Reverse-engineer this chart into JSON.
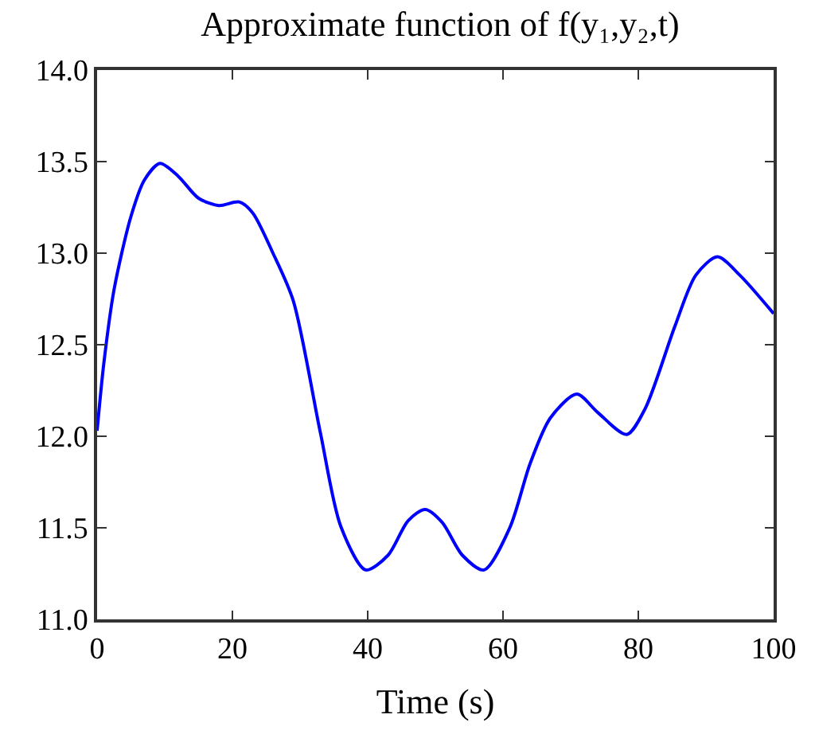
{
  "chart_data": {
    "type": "line",
    "title": "Approximate function of f(y₁,y₂,t)",
    "xlabel": "Time (s)",
    "x": [
      0,
      1,
      2.5,
      5,
      7,
      9.3,
      12,
      15,
      18,
      21,
      23,
      26,
      29,
      33,
      36,
      39.7,
      43,
      46,
      48.5,
      51,
      54,
      57.2,
      61,
      64,
      67,
      70.9,
      74,
      78.3,
      81,
      85.4,
      88.5,
      91.7,
      95,
      100
    ],
    "series": [
      {
        "color": "#0000ff",
        "values": [
          12.03,
          12.4,
          12.8,
          13.2,
          13.4,
          13.49,
          13.42,
          13.3,
          13.26,
          13.28,
          13.22,
          13.0,
          12.74,
          12.02,
          11.51,
          11.27,
          11.35,
          11.54,
          11.6,
          11.53,
          11.35,
          11.27,
          11.5,
          11.85,
          12.1,
          12.23,
          12.13,
          12.01,
          12.15,
          12.6,
          12.88,
          12.98,
          12.88,
          12.67
        ]
      }
    ],
    "xlim": [
      0,
      100
    ],
    "xticks": [
      0,
      20,
      40,
      60,
      80,
      100
    ],
    "ylim": [
      11,
      14
    ],
    "yticks": [
      {
        "value": 11,
        "label": "11.0"
      },
      {
        "value": 11.5,
        "label": "11.5"
      },
      {
        "value": 12,
        "label": "12.0"
      },
      {
        "value": 12.5,
        "label": "12.5"
      },
      {
        "value": 13,
        "label": "13.0"
      },
      {
        "value": 13.5,
        "label": "13.5"
      },
      {
        "value": 14,
        "label": "14.0"
      }
    ],
    "marker": "none",
    "line_style": "solid"
  }
}
